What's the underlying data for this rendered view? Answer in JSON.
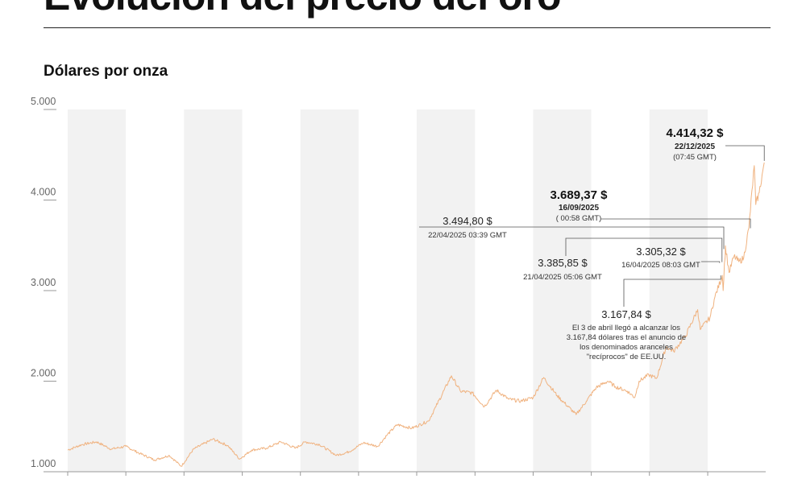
{
  "header": {
    "title": "Evolución del precio del oro",
    "subtitle": "Dólares por onza"
  },
  "colors": {
    "line": "#f0b27f",
    "band": "#f2f2f2",
    "leader": "#555555",
    "axis": "#999999"
  },
  "chart_data": {
    "type": "line",
    "title": "Evolución del precio del oro",
    "subtitle": "Dólares por onza",
    "xlabel": "",
    "ylabel": "Dólares por onza",
    "ylim": [
      1000,
      5000
    ],
    "yticks": [
      1000,
      2000,
      3000,
      4000,
      5000
    ],
    "ytick_labels": [
      "1.000",
      "2.000",
      "3.000",
      "4.000",
      "5.000"
    ],
    "xlim": [
      "2014-01-01",
      "2025-12-31"
    ],
    "grid": false,
    "series": [
      {
        "x": [
          "2014-01-01",
          "2014-04-01",
          "2014-07-01",
          "2014-10-01",
          "2015-01-01",
          "2015-04-01",
          "2015-07-01",
          "2015-10-01",
          "2015-12-15",
          "2016-03-01",
          "2016-07-01",
          "2016-10-01",
          "2016-12-15",
          "2017-03-01",
          "2017-06-01",
          "2017-09-01",
          "2017-12-01",
          "2018-02-01",
          "2018-05-01",
          "2018-08-15",
          "2018-11-01",
          "2019-02-01",
          "2019-05-01",
          "2019-07-01",
          "2019-09-01",
          "2019-12-01",
          "2020-03-15",
          "2020-05-01",
          "2020-08-06",
          "2020-10-01",
          "2020-12-15",
          "2021-03-01",
          "2021-05-15",
          "2021-08-01",
          "2021-10-15",
          "2022-01-01",
          "2022-03-08",
          "2022-06-01",
          "2022-09-28",
          "2022-12-01",
          "2023-02-01",
          "2023-04-15",
          "2023-06-01",
          "2023-08-15",
          "2023-10-01",
          "2023-10-28",
          "2023-12-28",
          "2024-02-15",
          "2024-04-15",
          "2024-06-01",
          "2024-08-15",
          "2024-10-30",
          "2024-11-15",
          "2025-01-15",
          "2025-02-15",
          "2025-04-03",
          "2025-04-08",
          "2025-04-16",
          "2025-04-21",
          "2025-04-22",
          "2025-05-15",
          "2025-06-15",
          "2025-07-15",
          "2025-08-15",
          "2025-09-16",
          "2025-10-20",
          "2025-10-30",
          "2025-11-20",
          "2025-12-22"
        ],
        "values": [
          1240,
          1300,
          1330,
          1250,
          1280,
          1200,
          1130,
          1180,
          1060,
          1250,
          1360,
          1290,
          1140,
          1240,
          1260,
          1330,
          1260,
          1330,
          1300,
          1180,
          1220,
          1320,
          1280,
          1410,
          1520,
          1480,
          1560,
          1720,
          2060,
          1890,
          1870,
          1720,
          1900,
          1800,
          1780,
          1820,
          2040,
          1840,
          1630,
          1780,
          1930,
          2000,
          1940,
          1890,
          1820,
          2000,
          2070,
          2030,
          2380,
          2330,
          2500,
          2790,
          2570,
          2700,
          2930,
          3167.84,
          3000,
          3305.32,
          3385.85,
          3494.8,
          3200,
          3380,
          3320,
          3360,
          3689.37,
          4380,
          3950,
          4080,
          4414.32
        ]
      }
    ],
    "annotations": [
      {
        "value": "4.414,32 $",
        "date": "22/12/2025",
        "time": "(07:45 GMT)"
      },
      {
        "value": "3.689,37 $",
        "date": "16/09/2025",
        "time": "( 00:58 GMT)"
      },
      {
        "value": "3.494,80 $",
        "date": "22/04/2025 03:39 GMT"
      },
      {
        "value": "3.385,85 $",
        "date": "21/04/2025 05:06 GMT"
      },
      {
        "value": "3.305,32 $",
        "date": "16/04/2025 08:03 GMT"
      },
      {
        "value": "3.167,84 $",
        "note": [
          "El 3 de abril llegó a alcanzar los",
          "3.167,84 dólares tras el anuncio de",
          "los denominados aranceles",
          "\"recíprocos\" de EE.UU."
        ]
      }
    ]
  }
}
